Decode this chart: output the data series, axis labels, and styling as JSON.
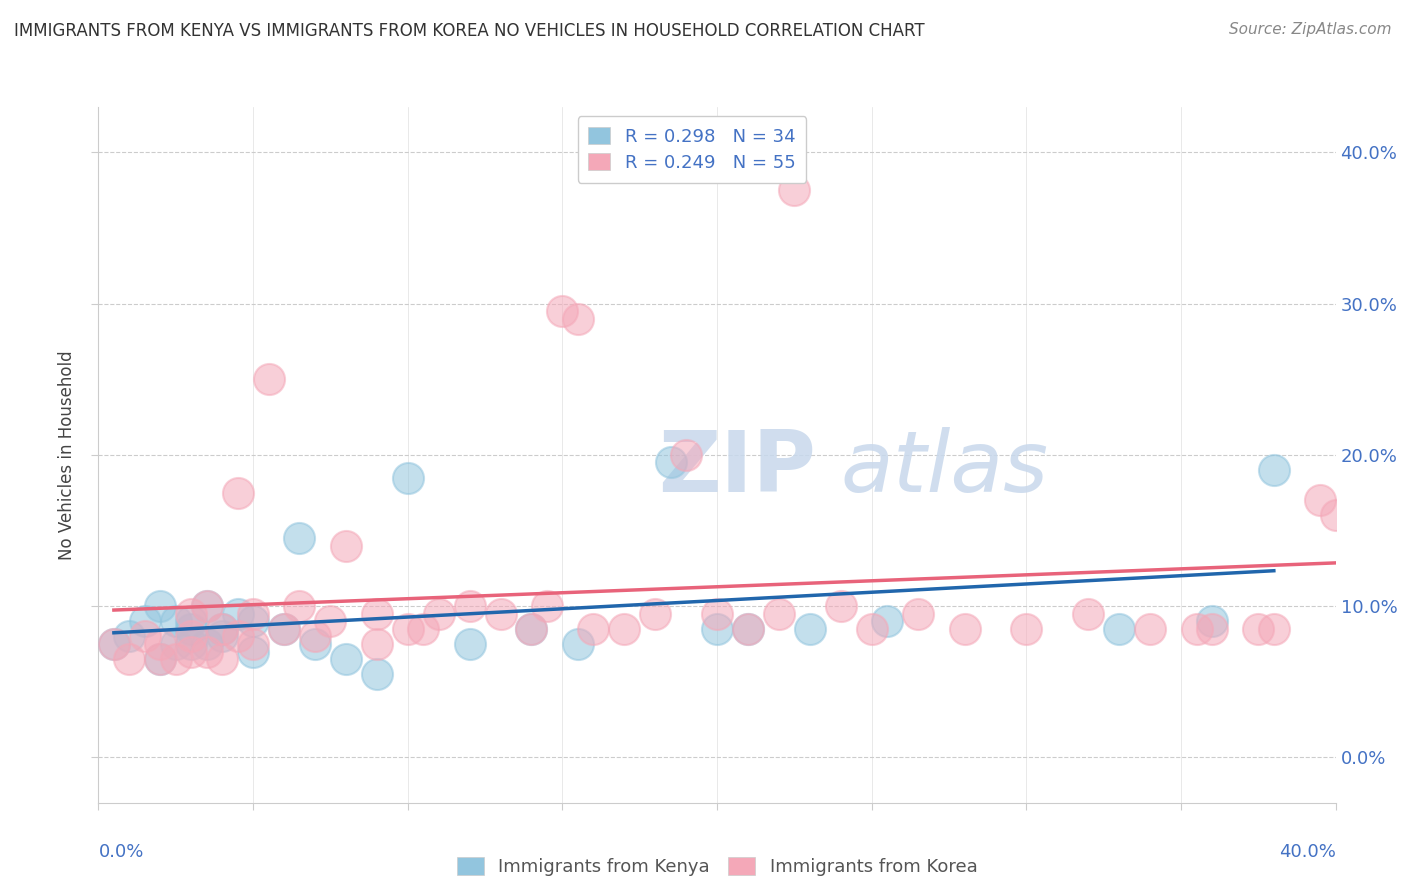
{
  "title": "IMMIGRANTS FROM KENYA VS IMMIGRANTS FROM KOREA NO VEHICLES IN HOUSEHOLD CORRELATION CHART",
  "source": "Source: ZipAtlas.com",
  "ylabel": "No Vehicles in Household",
  "xlim": [
    0.0,
    0.4
  ],
  "ylim": [
    -0.03,
    0.43
  ],
  "yticks": [
    0.0,
    0.1,
    0.2,
    0.3,
    0.4
  ],
  "ytick_labels": [
    "0.0%",
    "10.0%",
    "20.0%",
    "30.0%",
    "40.0%"
  ],
  "legend_kenya_R": "R = 0.298",
  "legend_kenya_N": "N = 34",
  "legend_korea_R": "R = 0.249",
  "legend_korea_N": "N = 55",
  "kenya_color": "#92c5de",
  "korea_color": "#f4a8b8",
  "kenya_line_color": "#2166ac",
  "korea_line_color": "#e8637a",
  "watermark_color": "#c8d8ec",
  "kenya_x": [
    0.005,
    0.01,
    0.015,
    0.02,
    0.02,
    0.025,
    0.025,
    0.03,
    0.03,
    0.03,
    0.035,
    0.035,
    0.04,
    0.04,
    0.045,
    0.05,
    0.05,
    0.06,
    0.065,
    0.07,
    0.08,
    0.09,
    0.1,
    0.12,
    0.14,
    0.155,
    0.185,
    0.2,
    0.21,
    0.23,
    0.255,
    0.33,
    0.36,
    0.38
  ],
  "kenya_y": [
    0.075,
    0.08,
    0.09,
    0.065,
    0.1,
    0.075,
    0.09,
    0.075,
    0.09,
    0.085,
    0.075,
    0.1,
    0.08,
    0.085,
    0.095,
    0.09,
    0.07,
    0.085,
    0.145,
    0.075,
    0.065,
    0.055,
    0.185,
    0.075,
    0.085,
    0.075,
    0.195,
    0.085,
    0.085,
    0.085,
    0.09,
    0.085,
    0.09,
    0.19
  ],
  "korea_x": [
    0.005,
    0.01,
    0.015,
    0.02,
    0.02,
    0.025,
    0.03,
    0.03,
    0.03,
    0.035,
    0.035,
    0.04,
    0.04,
    0.045,
    0.045,
    0.05,
    0.05,
    0.055,
    0.06,
    0.065,
    0.07,
    0.075,
    0.08,
    0.09,
    0.09,
    0.1,
    0.105,
    0.11,
    0.12,
    0.13,
    0.14,
    0.145,
    0.15,
    0.155,
    0.16,
    0.17,
    0.18,
    0.19,
    0.2,
    0.21,
    0.22,
    0.225,
    0.24,
    0.25,
    0.265,
    0.28,
    0.3,
    0.32,
    0.34,
    0.355,
    0.36,
    0.375,
    0.38,
    0.395,
    0.4
  ],
  "korea_y": [
    0.075,
    0.065,
    0.08,
    0.065,
    0.075,
    0.065,
    0.07,
    0.08,
    0.095,
    0.07,
    0.1,
    0.065,
    0.085,
    0.08,
    0.175,
    0.075,
    0.095,
    0.25,
    0.085,
    0.1,
    0.08,
    0.09,
    0.14,
    0.075,
    0.095,
    0.085,
    0.085,
    0.095,
    0.1,
    0.095,
    0.085,
    0.1,
    0.295,
    0.29,
    0.085,
    0.085,
    0.095,
    0.2,
    0.095,
    0.085,
    0.095,
    0.375,
    0.1,
    0.085,
    0.095,
    0.085,
    0.085,
    0.095,
    0.085,
    0.085,
    0.085,
    0.085,
    0.085,
    0.17,
    0.16
  ]
}
